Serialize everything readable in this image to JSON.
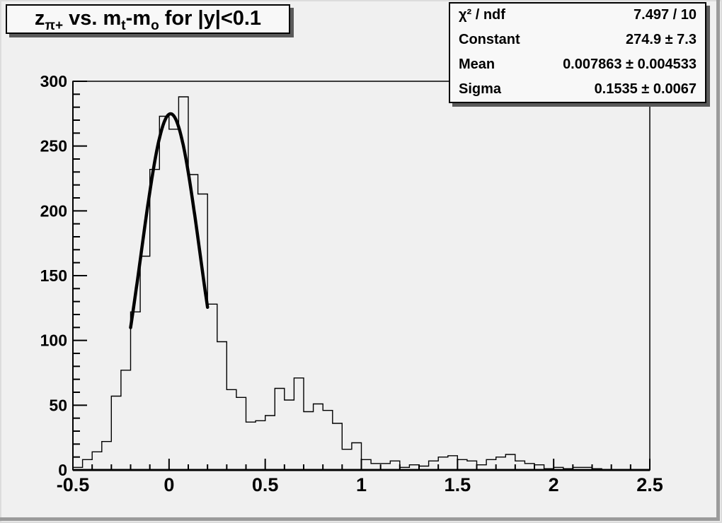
{
  "canvas": {
    "background": "#f0f0f0",
    "bevel_color": "#9b9b9b",
    "pave_background": "#f8f8f8",
    "line_color": "#000000"
  },
  "title": {
    "text": "z_{π+} vs. m_t-m_o for |y|<0.1",
    "parts": [
      {
        "text": "z",
        "sub": false
      },
      {
        "text": "π+",
        "sub": true
      },
      {
        "text": " vs. m",
        "sub": false
      },
      {
        "text": "t",
        "sub": true
      },
      {
        "text": "-m",
        "sub": false
      },
      {
        "text": "o",
        "sub": true
      },
      {
        "text": " for |y|<0.1",
        "sub": false
      }
    ]
  },
  "stats": {
    "rows": [
      {
        "label": "χ² / ndf",
        "value": "7.497 / 10"
      },
      {
        "label": "Constant",
        "value": "274.9 ± 7.3"
      },
      {
        "label": "Mean",
        "value": "0.007863 ± 0.004533"
      },
      {
        "label": "Sigma",
        "value": "0.1535 ± 0.0067"
      }
    ]
  },
  "chart_data": {
    "type": "histogram",
    "title": "z_{π+} vs. m_t-m_o for |y|<0.1",
    "xlabel": "",
    "ylabel": "",
    "x": {
      "min": -0.5,
      "max": 2.5,
      "bin_width": 0.05,
      "major_tick_step": 0.5,
      "minor_tick_step": 0.1,
      "tick_labels": [
        "-0.5",
        "0",
        "0.5",
        "1",
        "1.5",
        "2",
        "2.5"
      ]
    },
    "y": {
      "min": 0,
      "max": 300,
      "major_tick_step": 50,
      "minor_tick_step": 10,
      "tick_labels": [
        "0",
        "50",
        "100",
        "150",
        "200",
        "250",
        "300"
      ]
    },
    "bins": [
      2,
      8,
      14,
      22,
      57,
      77,
      122,
      165,
      232,
      273,
      263,
      288,
      228,
      213,
      128,
      99,
      62,
      56,
      37,
      38,
      42,
      63,
      54,
      71,
      45,
      51,
      46,
      36,
      16,
      21,
      8,
      5,
      5,
      7,
      2,
      4,
      3,
      7,
      10,
      11,
      8,
      7,
      4,
      8,
      10,
      12,
      7,
      5,
      4,
      1,
      2,
      1,
      2,
      2,
      1,
      0,
      0,
      0,
      0,
      0
    ],
    "fit": {
      "type": "gaussian",
      "constant": 274.9,
      "mean": 0.007863,
      "sigma": 0.1535,
      "draw_range": [
        -0.2,
        0.2
      ],
      "chi2_ndf": "7.497 / 10"
    },
    "legend": "none",
    "grid": false,
    "colors": {
      "histogram": "#000000",
      "fit": "#000000"
    }
  }
}
